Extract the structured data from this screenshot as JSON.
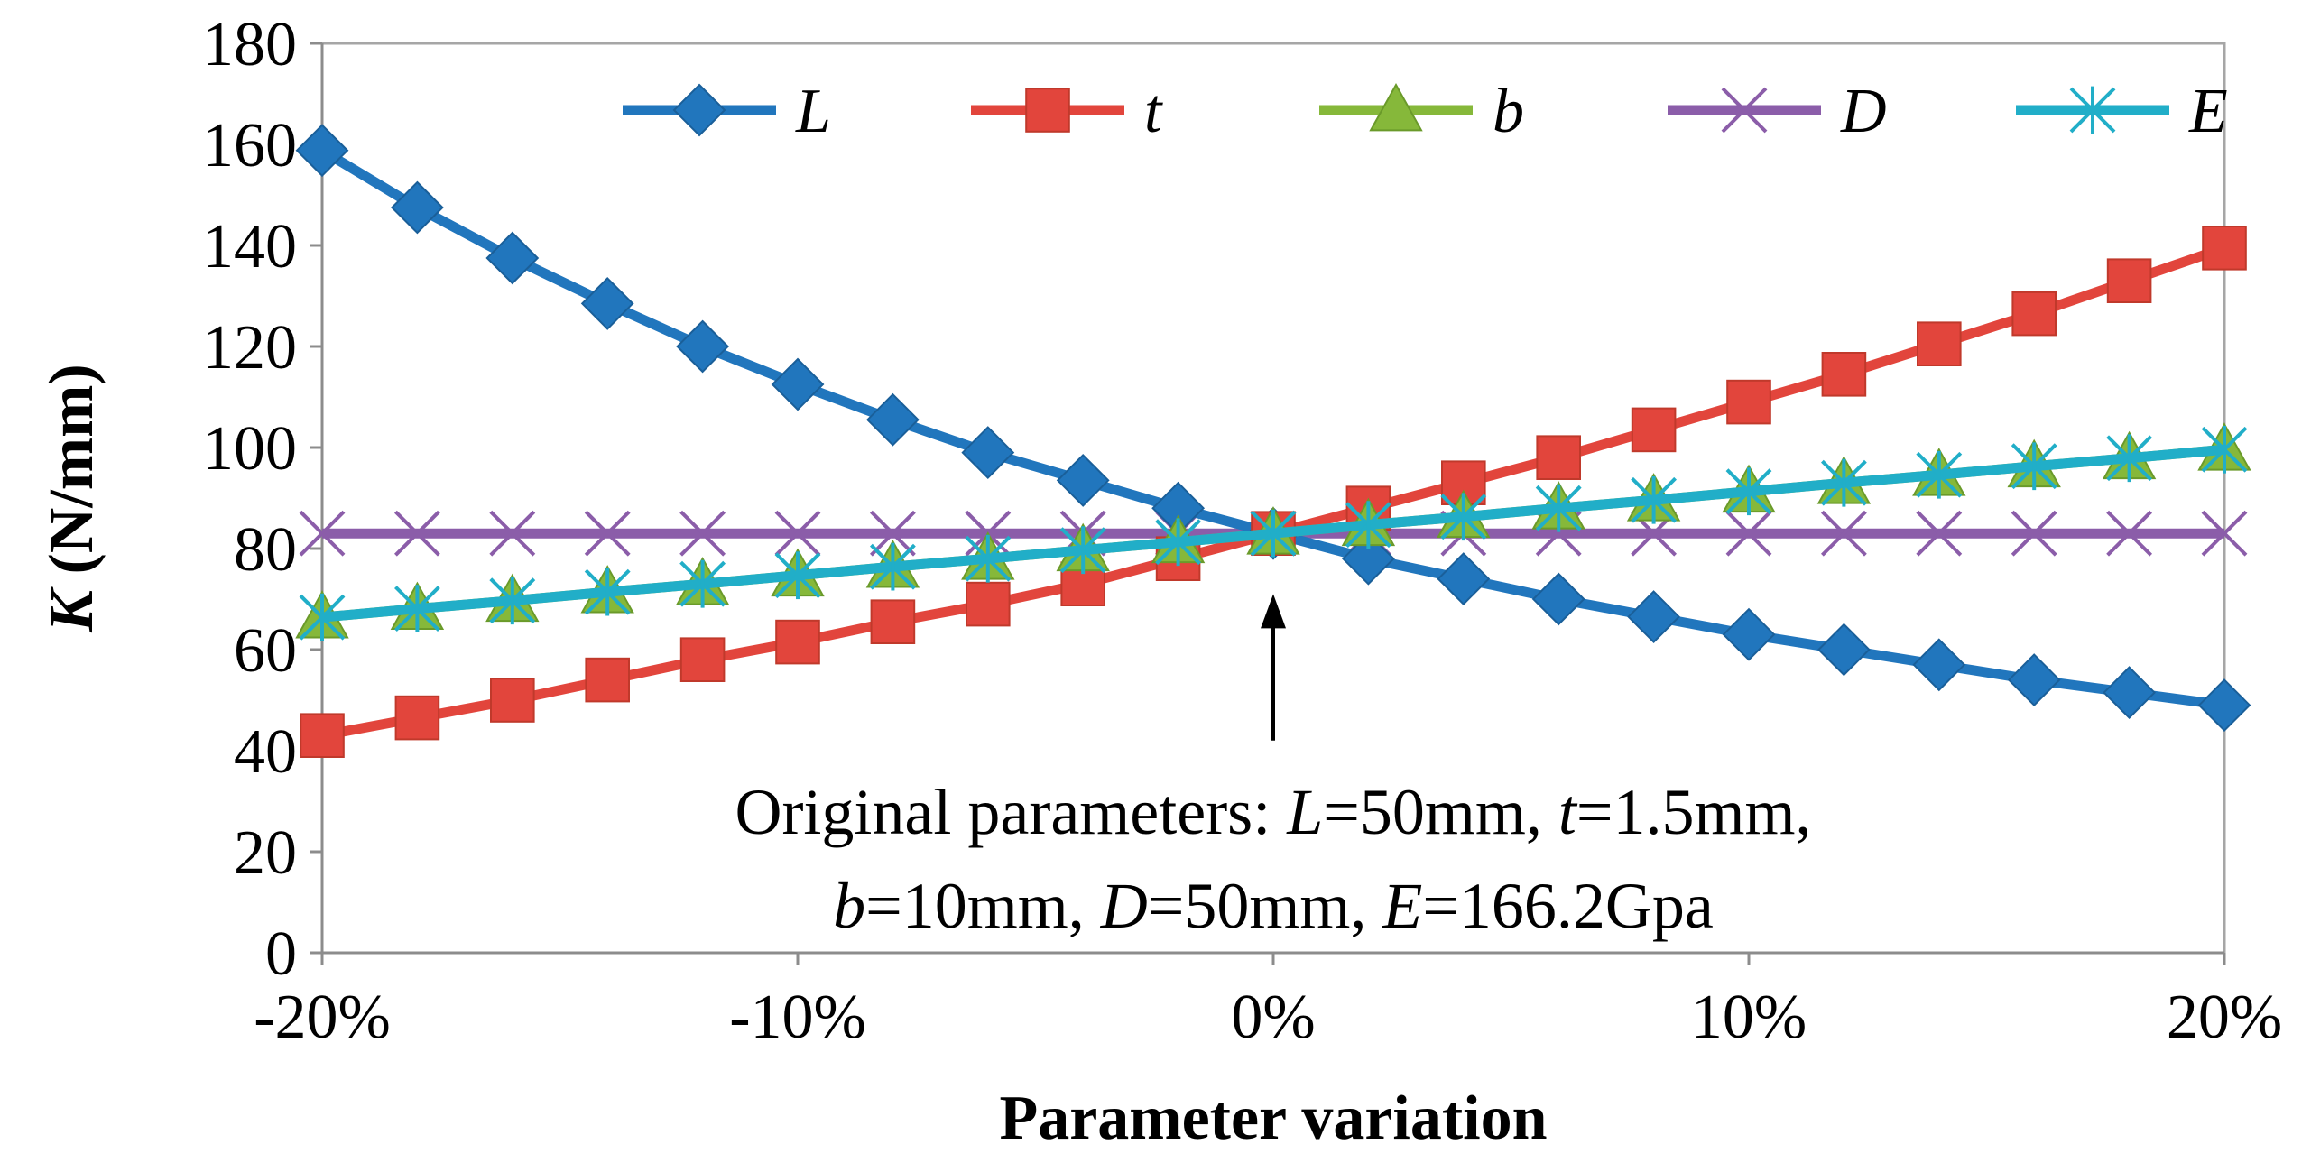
{
  "chart_data": {
    "type": "line",
    "title": "",
    "xlabel": "Parameter variation",
    "ylabel_italic": "K",
    "ylabel_unit": " (N/mm)",
    "x": [
      -20,
      -18,
      -16,
      -14,
      -12,
      -10,
      -8,
      -6,
      -4,
      -2,
      0,
      2,
      4,
      6,
      8,
      10,
      12,
      14,
      16,
      18,
      20
    ],
    "xlim": [
      -20,
      20
    ],
    "ylim": [
      0,
      180
    ],
    "xticks": [
      -20,
      -10,
      0,
      10,
      20
    ],
    "xtick_labels": [
      "-20%",
      "-10%",
      "0%",
      "10%",
      "20%"
    ],
    "yticks": [
      0,
      20,
      40,
      60,
      80,
      100,
      120,
      140,
      160,
      180
    ],
    "ytick_labels": [
      "0",
      "20",
      "40",
      "60",
      "80",
      "100",
      "120",
      "140",
      "160",
      "180"
    ],
    "grid": false,
    "legend_position": "top",
    "series": [
      {
        "name": "L",
        "color": "#2176BD",
        "marker": "diamond",
        "values": [
          158.8,
          147.5,
          137.5,
          128.5,
          120.0,
          112.5,
          105.5,
          99.0,
          93.5,
          88.0,
          83.0,
          78.0,
          74.0,
          70.0,
          66.5,
          63.0,
          60.0,
          57.0,
          54.0,
          51.5,
          49.0
        ]
      },
      {
        "name": "t",
        "color": "#E2453C",
        "marker": "square",
        "values": [
          43.0,
          46.5,
          50.0,
          54.0,
          58.0,
          61.5,
          65.5,
          69.0,
          73.0,
          78.0,
          83.0,
          88.0,
          93.0,
          98.0,
          103.5,
          109.0,
          114.5,
          120.5,
          126.5,
          133.0,
          139.5
        ]
      },
      {
        "name": "b",
        "color": "#86B83A",
        "marker": "triangle",
        "values": [
          66.4,
          68.1,
          69.7,
          71.4,
          73.0,
          74.7,
          76.4,
          78.0,
          79.7,
          81.3,
          83.0,
          84.7,
          86.3,
          88.0,
          89.6,
          91.3,
          93.0,
          94.6,
          96.3,
          97.9,
          99.6
        ]
      },
      {
        "name": "D",
        "color": "#8B5DA9",
        "marker": "x",
        "values": [
          83.0,
          83.0,
          83.0,
          83.0,
          83.0,
          83.0,
          83.0,
          83.0,
          83.0,
          83.0,
          83.0,
          83.0,
          83.0,
          83.0,
          83.0,
          83.0,
          83.0,
          83.0,
          83.0,
          83.0,
          83.0
        ]
      },
      {
        "name": "E",
        "color": "#21AEC8",
        "marker": "asterisk",
        "values": [
          66.4,
          68.1,
          69.7,
          71.4,
          73.0,
          74.7,
          76.4,
          78.0,
          79.7,
          81.3,
          83.0,
          84.7,
          86.3,
          88.0,
          89.6,
          91.3,
          93.0,
          94.6,
          96.3,
          97.9,
          99.6
        ]
      }
    ],
    "annotation": {
      "line1_prefix": "Original parameters: ",
      "line1_L": "L",
      "line1_L_val": "=50mm, ",
      "line1_t": "t",
      "line1_t_val": "=1.5mm,",
      "line2_b": "b",
      "line2_b_val": "=10mm, ",
      "line2_D": "D",
      "line2_D_val": "=50mm, ",
      "line2_E": "E",
      "line2_E_val": "=166.2Gpa",
      "arrow_x": 0,
      "arrow_from_y": 42,
      "arrow_to_y": 71
    }
  }
}
